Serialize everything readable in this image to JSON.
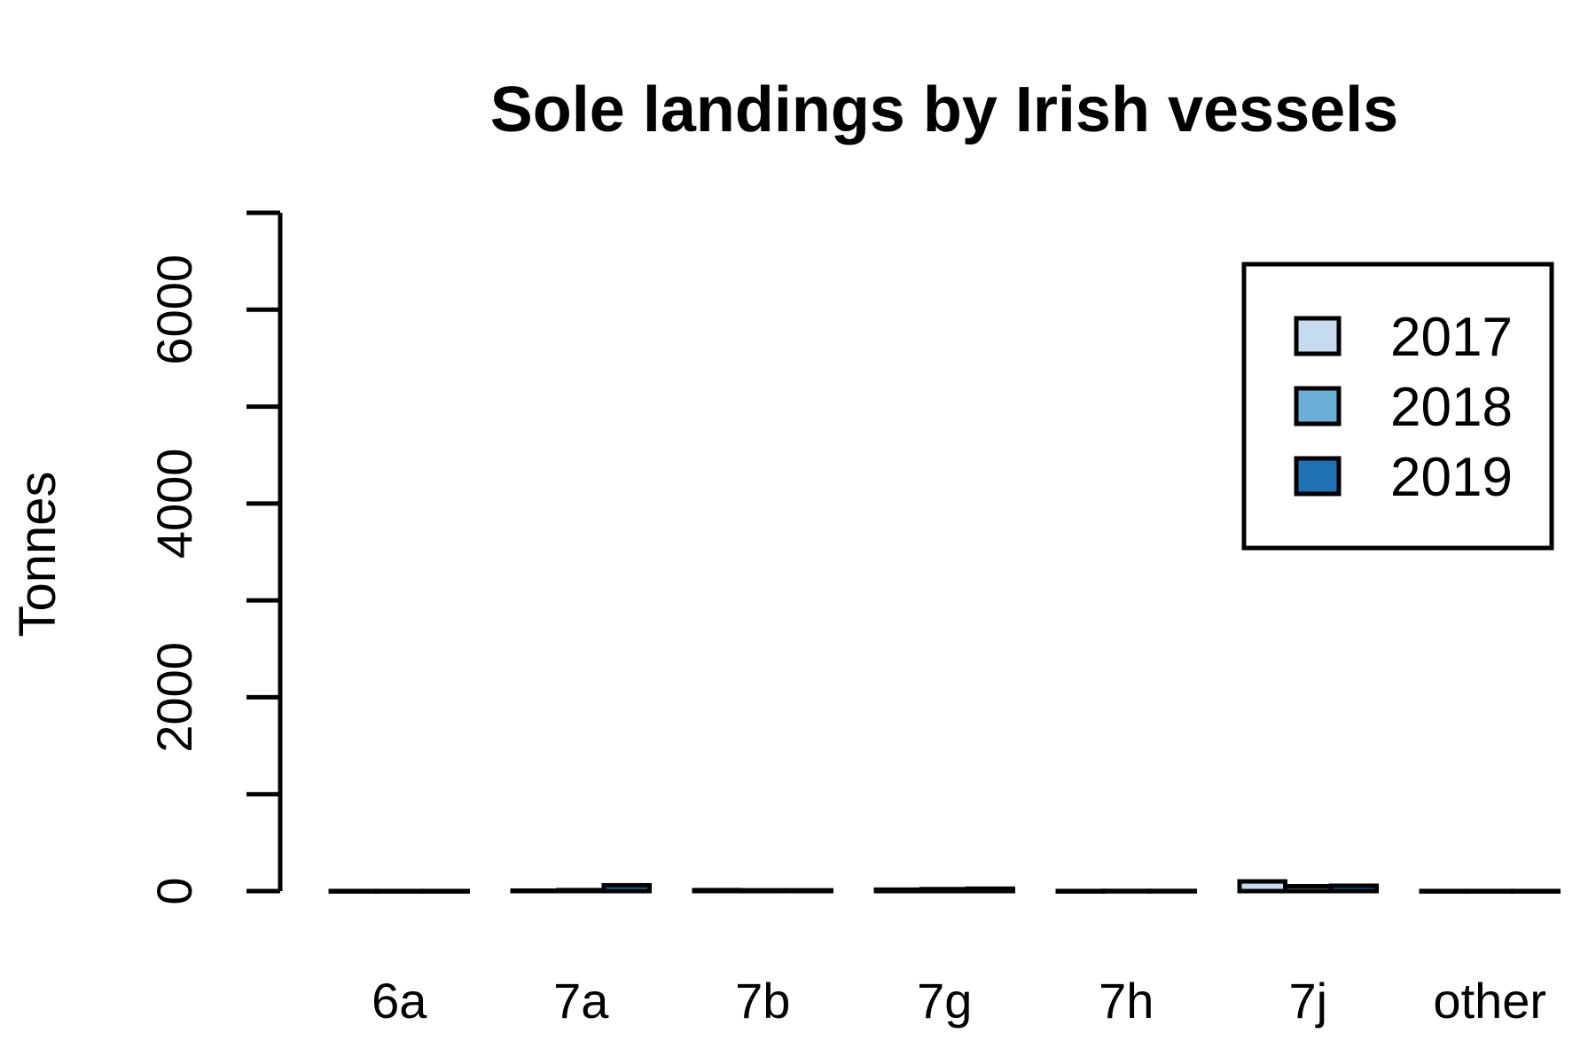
{
  "chart_data": {
    "type": "bar",
    "title": "Sole landings by Irish vessels",
    "xlabel": "",
    "ylabel": "Tonnes",
    "categories": [
      "6a",
      "7a",
      "7b",
      "7g",
      "7h",
      "7j",
      "other"
    ],
    "series": [
      {
        "name": "2017",
        "color": "#c6dbef",
        "values": [
          1,
          5,
          10,
          15,
          1,
          100,
          1
        ]
      },
      {
        "name": "2018",
        "color": "#6baed6",
        "values": [
          1,
          10,
          8,
          20,
          2,
          50,
          1
        ]
      },
      {
        "name": "2019",
        "color": "#2171b5",
        "values": [
          1,
          60,
          8,
          25,
          2,
          55,
          1
        ]
      }
    ],
    "ylim": [
      0,
      7000
    ],
    "yticks": [
      0,
      1000,
      2000,
      3000,
      4000,
      5000,
      6000,
      7000
    ],
    "ytick_labels": [
      "0",
      "",
      "2000",
      "",
      "4000",
      "",
      "6000",
      ""
    ],
    "grid": false,
    "legend_position": "top-right"
  }
}
